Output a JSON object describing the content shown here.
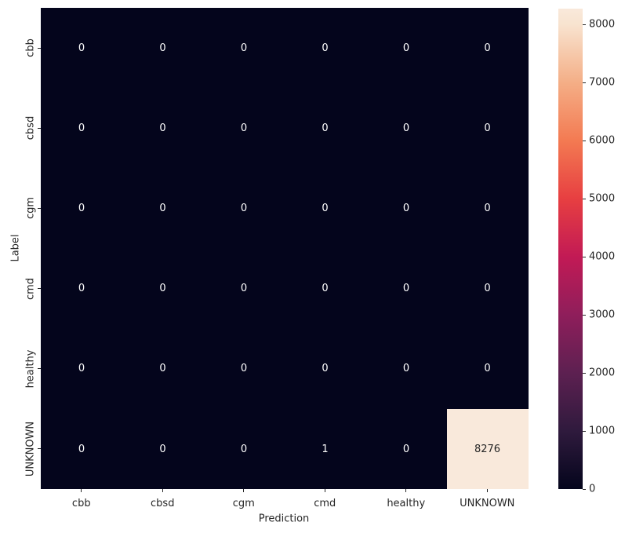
{
  "chart_data": {
    "type": "heatmap",
    "title": "",
    "xlabel": "Prediction",
    "ylabel": "Label",
    "x_categories": [
      "cbb",
      "cbsd",
      "cgm",
      "cmd",
      "healthy",
      "UNKNOWN"
    ],
    "y_categories": [
      "cbb",
      "cbsd",
      "cgm",
      "cmd",
      "healthy",
      "UNKNOWN"
    ],
    "matrix": [
      [
        0,
        0,
        0,
        0,
        0,
        0
      ],
      [
        0,
        0,
        0,
        0,
        0,
        0
      ],
      [
        0,
        0,
        0,
        0,
        0,
        0
      ],
      [
        0,
        0,
        0,
        0,
        0,
        0
      ],
      [
        0,
        0,
        0,
        0,
        0,
        0
      ],
      [
        0,
        0,
        0,
        1,
        0,
        8276
      ]
    ],
    "annotations_on": true,
    "grid_on": false,
    "colormap_name": "rocket",
    "colormap_stops": [
      {
        "pos": 0.0,
        "hex": "#04051c"
      },
      {
        "pos": 0.1208,
        "hex": "#2f1a3d"
      },
      {
        "pos": 0.2417,
        "hex": "#5d2051"
      },
      {
        "pos": 0.3625,
        "hex": "#8f1e5b"
      },
      {
        "pos": 0.4833,
        "hex": "#c21a55"
      },
      {
        "pos": 0.6042,
        "hex": "#e73f41"
      },
      {
        "pos": 0.725,
        "hex": "#f37a52"
      },
      {
        "pos": 0.8458,
        "hex": "#f4ae86"
      },
      {
        "pos": 0.9667,
        "hex": "#f8e3cf"
      },
      {
        "pos": 1.0,
        "hex": "#f9e9db"
      }
    ],
    "colorbar": {
      "min": 0,
      "max": 8276,
      "ticks": [
        0,
        1000,
        2000,
        3000,
        4000,
        5000,
        6000,
        7000,
        8000
      ],
      "position": "right"
    },
    "annotation_color_on_dark": "#ffffff",
    "annotation_color_on_light": "#262626",
    "tick_label_color": "#262626"
  }
}
